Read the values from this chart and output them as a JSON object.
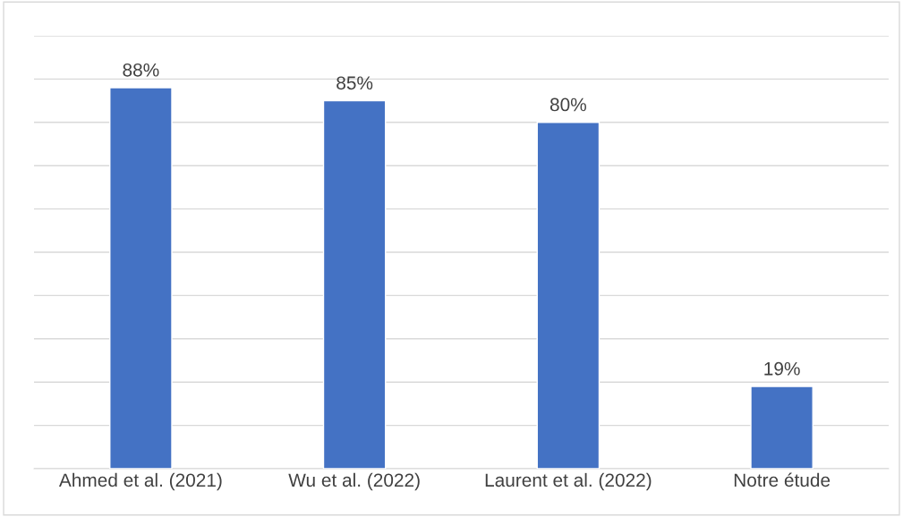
{
  "chart_data": {
    "type": "bar",
    "categories": [
      "Ahmed et al. (2021)",
      "Wu et al. (2022)",
      "Laurent et al. (2022)",
      "Notre étude"
    ],
    "values": [
      88,
      85,
      80,
      19
    ],
    "value_labels": [
      "88%",
      "85%",
      "80%",
      "19%"
    ],
    "color": "#4472c4",
    "ylim": [
      0,
      100
    ],
    "yticks": [
      {
        "value": 0,
        "label": null
      },
      {
        "value": 10,
        "label": null
      },
      {
        "value": 20,
        "label": null
      },
      {
        "value": 30,
        "label": null
      },
      {
        "value": 40,
        "label": null
      },
      {
        "value": 50,
        "label": null
      },
      {
        "value": 60,
        "label": null
      },
      {
        "value": 70,
        "label": null
      },
      {
        "value": 80,
        "label": null
      },
      {
        "value": 90,
        "label": null
      },
      {
        "value": 100,
        "label": null
      }
    ],
    "grid": "y",
    "tick_labels": "x"
  }
}
